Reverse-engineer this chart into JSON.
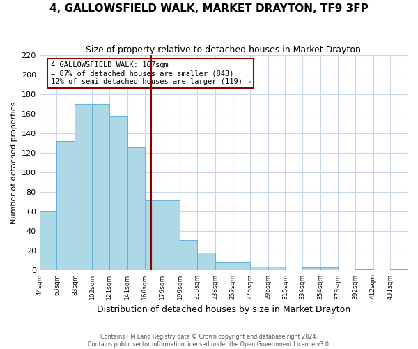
{
  "title": "4, GALLOWSFIELD WALK, MARKET DRAYTON, TF9 3FP",
  "subtitle": "Size of property relative to detached houses in Market Drayton",
  "xlabel": "Distribution of detached houses by size in Market Drayton",
  "ylabel": "Number of detached properties",
  "bar_labels": [
    "44sqm",
    "63sqm",
    "83sqm",
    "102sqm",
    "121sqm",
    "141sqm",
    "160sqm",
    "179sqm",
    "199sqm",
    "218sqm",
    "238sqm",
    "257sqm",
    "276sqm",
    "296sqm",
    "315sqm",
    "334sqm",
    "354sqm",
    "373sqm",
    "392sqm",
    "412sqm",
    "431sqm"
  ],
  "bin_edges": [
    44,
    63,
    83,
    102,
    121,
    141,
    160,
    179,
    199,
    218,
    238,
    257,
    276,
    296,
    315,
    334,
    354,
    373,
    392,
    412,
    431,
    450
  ],
  "bar_values": [
    60,
    132,
    170,
    170,
    158,
    126,
    72,
    72,
    31,
    18,
    8,
    8,
    4,
    4,
    0,
    3,
    3,
    0,
    1,
    0,
    1
  ],
  "bar_color": "#add8e6",
  "bar_edge_color": "#6baed6",
  "ylim": [
    0,
    220
  ],
  "yticks": [
    0,
    20,
    40,
    60,
    80,
    100,
    120,
    140,
    160,
    180,
    200,
    220
  ],
  "vline_x": 167,
  "vline_color": "#8b0000",
  "annotation_title": "4 GALLOWSFIELD WALK: 167sqm",
  "annotation_line1": "← 87% of detached houses are smaller (843)",
  "annotation_line2": "12% of semi-detached houses are larger (119) →",
  "annotation_box_color": "#8b0000",
  "footer_line1": "Contains HM Land Registry data © Crown copyright and database right 2024.",
  "footer_line2": "Contains public sector information licensed under the Open Government Licence v3.0.",
  "bg_color": "#ffffff",
  "grid_color": "#c8d8e8",
  "title_fontsize": 11,
  "subtitle_fontsize": 9,
  "ylabel_fontsize": 8,
  "xlabel_fontsize": 9
}
